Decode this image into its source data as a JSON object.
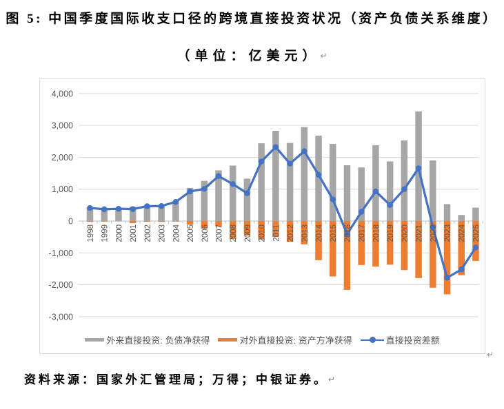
{
  "title": "图 5: 中国季度国际收支口径的跨境直接投资状况（资产负债关系维度）",
  "subtitle": "（单位：亿美元）",
  "return_mark": "↵",
  "source": "资料来源：国家外汇管理局；万得；中银证券。",
  "colors": {
    "inward_bar": "#a6a6a6",
    "outward_bar": "#ed7d31",
    "balance_line": "#4472c4",
    "gridline": "#d9d9d9",
    "zero_axis": "#bfbfbf",
    "axis_text": "#595959",
    "frame_border": "#d9d9d9"
  },
  "chart_data": {
    "type": "bar",
    "note": "combo chart: two bar series + one line series",
    "unit": "亿美元",
    "categories": [
      "1998",
      "1999",
      "2000",
      "2001",
      "2002",
      "2003",
      "2004",
      "2005",
      "2006",
      "2007",
      "2008",
      "2009",
      "2010",
      "2011",
      "2012",
      "2013",
      "2014",
      "2015",
      "2016",
      "2017",
      "2018",
      "2019",
      "2020",
      "2021",
      "2022",
      "2023",
      "2024",
      "2025"
    ],
    "series": [
      {
        "name": "外来直接投资: 负债净获得",
        "type": "bar",
        "color": "#a6a6a6",
        "values": [
          440,
          390,
          400,
          445,
          490,
          500,
          620,
          1040,
          1260,
          1590,
          1740,
          1330,
          2440,
          2830,
          2450,
          2950,
          2680,
          2420,
          1750,
          1680,
          2380,
          1870,
          2530,
          3440,
          1900,
          530,
          190,
          420
        ]
      },
      {
        "name": "对外直接投资: 资产方净获得",
        "type": "bar",
        "color": "#ed7d31",
        "values": [
          -26,
          -18,
          -10,
          -69,
          -25,
          -29,
          -18,
          -115,
          -240,
          -170,
          -560,
          -460,
          -580,
          -500,
          -650,
          -730,
          -1230,
          -1740,
          -2160,
          -1380,
          -1430,
          -1370,
          -1540,
          -1790,
          -2090,
          -2300,
          -1700,
          -1250
        ]
      },
      {
        "name": "直接投资差额",
        "type": "line",
        "color": "#4472c4",
        "values": [
          410,
          370,
          385,
          375,
          465,
          470,
          600,
          925,
          1010,
          1410,
          1160,
          870,
          1870,
          2320,
          1800,
          2190,
          1450,
          680,
          -410,
          290,
          930,
          505,
          1000,
          1655,
          -190,
          -1780,
          -1520,
          -830
        ]
      }
    ],
    "y_ticks": [
      "4,000",
      "3,000",
      "2,000",
      "1,000",
      "0",
      "-1,000",
      "-2,000",
      "-3,000"
    ],
    "y_tick_values": [
      4000,
      3000,
      2000,
      1000,
      0,
      -1000,
      -2000,
      -3000
    ],
    "ylim": [
      -3000,
      4000
    ],
    "grid": true,
    "legend_position": "bottom"
  }
}
